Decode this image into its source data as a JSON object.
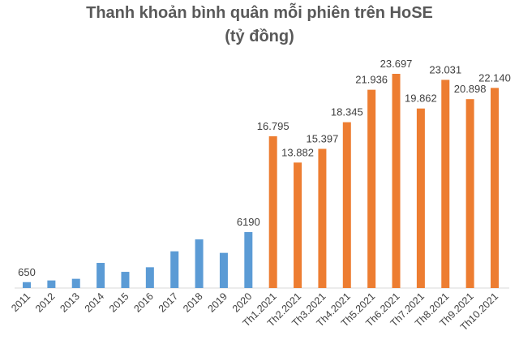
{
  "chart_data": {
    "type": "bar",
    "title": "Thanh khoản bình quân mỗi phiên trên HoSE",
    "subtitle": "(tỷ đồng)",
    "xlabel": "",
    "ylabel": "",
    "ylim": [
      0,
      25000
    ],
    "grid": false,
    "categories": [
      "2011",
      "2012",
      "2013",
      "2014",
      "2015",
      "2016",
      "2017",
      "2018",
      "2019",
      "2020",
      "Th1.2021",
      "Th2.2021",
      "Th3.2021",
      "Th4.2021",
      "Th5.2021",
      "Th6.2021",
      "Th7.2021",
      "Th8.2021",
      "Th9.2021",
      "Th10.2021"
    ],
    "values": [
      650,
      840,
      1020,
      2780,
      1790,
      2300,
      4060,
      5380,
      3890,
      6190,
      16795,
      13882,
      15397,
      18345,
      21936,
      23697,
      19862,
      23031,
      20898,
      22140
    ],
    "data_labels": [
      "650",
      "",
      "",
      "",
      "",
      "",
      "",
      "",
      "",
      "6190",
      "16.795",
      "13.882",
      "15.397",
      "18.345",
      "21.936",
      "23.697",
      "19.862",
      "23.031",
      "20.898",
      "22.140"
    ],
    "colors": [
      "#5b9bd5",
      "#5b9bd5",
      "#5b9bd5",
      "#5b9bd5",
      "#5b9bd5",
      "#5b9bd5",
      "#5b9bd5",
      "#5b9bd5",
      "#5b9bd5",
      "#5b9bd5",
      "#ed7d31",
      "#ed7d31",
      "#ed7d31",
      "#ed7d31",
      "#ed7d31",
      "#ed7d31",
      "#ed7d31",
      "#ed7d31",
      "#ed7d31",
      "#ed7d31"
    ]
  }
}
